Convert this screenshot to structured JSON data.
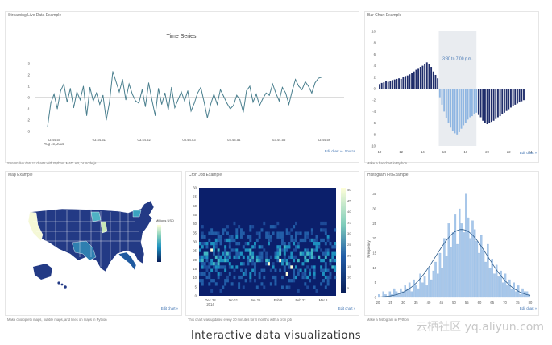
{
  "caption": "Interactive data visualizations",
  "watermark": "云栖社区 yq.aliyun.com",
  "colors": {
    "navy": "#1e2c6a",
    "light_blue": "#8fb6e2",
    "teal": "#4a7f8e",
    "accent": "#3a6fb0"
  },
  "panels": {
    "streaming": {
      "title": "Streaming Live Data Example",
      "footer": "Stream live data to charts with Python, MATLAB, or Node.js",
      "link": "Edit chart » · Source",
      "chart_data": {
        "type": "line",
        "title": "Time Series",
        "ylim": [
          -3,
          3
        ],
        "yticks": [
          "3",
          "2",
          "1",
          "0",
          "-1",
          "-2",
          "-3"
        ],
        "xticks": [
          "03:44:50\nAug 15, 2015",
          "03:44:51",
          "03:44:52",
          "03:44:53",
          "03:44:54",
          "03:44:55",
          "03:44:56"
        ],
        "values": [
          -2.6,
          -0.5,
          0.3,
          -1.0,
          0.6,
          1.2,
          -0.4,
          0.8,
          -0.9,
          0.5,
          -0.2,
          1.0,
          -1.6,
          0.9,
          -0.3,
          0.4,
          -0.6,
          0.2,
          -2.0,
          -0.4,
          2.3,
          1.4,
          0.5,
          1.6,
          -0.2,
          1.2,
          0.3,
          -0.3,
          -0.5,
          0.7,
          -0.8,
          1.3,
          -0.2,
          -1.6,
          0.8,
          -0.6,
          0.4,
          -1.1,
          0.9,
          -0.9,
          -0.2,
          0.5,
          -0.3,
          0.6,
          -1.2,
          -0.5,
          0.4,
          0.9,
          -0.4,
          -1.8,
          -0.6,
          0.3,
          -0.6,
          0.7,
          0.1,
          -0.5,
          -1.0,
          -0.7,
          0.2,
          -0.2,
          -1.3,
          0.6,
          1.0,
          -0.4,
          0.3,
          -0.7,
          -0.1,
          0.4,
          0.2,
          1.2,
          0.4,
          -0.3,
          0.9,
          0.4,
          -0.6,
          0.6,
          1.6,
          1.0,
          0.7,
          1.4,
          1.0,
          0.4,
          1.3,
          1.7,
          1.8
        ]
      }
    },
    "bar": {
      "title": "Bar Chart Example",
      "footer": "Make a bar chart in Python",
      "link": "Edit chart »",
      "annotation": "3:30 to 7:00 p.m.",
      "chart_data": {
        "type": "bar",
        "ylim": [
          -10,
          10
        ],
        "yticks": [
          "10",
          "8",
          "6",
          "4",
          "2",
          "0",
          "-2",
          "-4",
          "-6",
          "-8",
          "-10"
        ],
        "xticks": [
          "10",
          "12",
          "14",
          "16",
          "18",
          "20",
          "22",
          "24"
        ],
        "highlight_range": [
          15.5,
          19
        ],
        "x": [
          10,
          10.2,
          10.4,
          10.6,
          10.8,
          11,
          11.2,
          11.4,
          11.6,
          11.8,
          12,
          12.2,
          12.4,
          12.6,
          12.8,
          13,
          13.2,
          13.4,
          13.6,
          13.8,
          14,
          14.2,
          14.4,
          14.6,
          14.8,
          15,
          15.2,
          15.4,
          15.6,
          15.8,
          16,
          16.2,
          16.4,
          16.6,
          16.8,
          17,
          17.2,
          17.4,
          17.6,
          17.8,
          18,
          18.2,
          18.4,
          18.6,
          18.8,
          19,
          19.2,
          19.4,
          19.6,
          19.8,
          20,
          20.2,
          20.4,
          20.6,
          20.8,
          21,
          21.2,
          21.4,
          21.6,
          21.8,
          22,
          22.2,
          22.4,
          22.6,
          22.8,
          23,
          23.2,
          23.4
        ],
        "values": [
          0.8,
          1.0,
          1.1,
          1.3,
          1.2,
          1.4,
          1.5,
          1.6,
          1.7,
          1.8,
          1.7,
          2.0,
          2.2,
          2.3,
          2.5,
          2.8,
          3.0,
          3.3,
          3.6,
          3.8,
          4.0,
          4.3,
          4.6,
          4.3,
          3.8,
          3.0,
          2.4,
          1.8,
          -1.5,
          -2.8,
          -4.0,
          -5.2,
          -6.0,
          -6.8,
          -7.4,
          -7.8,
          -8.0,
          -7.6,
          -7.0,
          -6.4,
          -6.0,
          -5.4,
          -5.0,
          -4.8,
          -4.5,
          -4.2,
          -4.6,
          -5.0,
          -5.6,
          -6.0,
          -6.2,
          -6.0,
          -5.8,
          -5.6,
          -5.3,
          -5.0,
          -4.8,
          -4.5,
          -4.2,
          -3.9,
          -3.6,
          -3.3,
          -3.0,
          -2.8,
          -2.6,
          -2.4,
          -2.2,
          -2.0
        ]
      }
    },
    "map": {
      "title": "Map Example",
      "legend_title": "Millions USD",
      "footer": "Make choropleth maps, bubble maps, and lines on maps in Python",
      "link": "Edit chart »"
    },
    "heatmap": {
      "title": "Cron Job Example",
      "footer": "This chart was updated every 30 minutes for 4 months with a cron job",
      "link": "Edit chart »",
      "chart_data": {
        "type": "heatmap",
        "yticks": [
          "60",
          "55",
          "50",
          "45",
          "40",
          "35",
          "30",
          "25",
          "20",
          "15",
          "10",
          "5",
          "0"
        ],
        "xticks": [
          "Dec 28\n2014",
          "Jan 11",
          "Jan 25",
          "Feb 8",
          "Feb 22",
          "Mar 8"
        ],
        "colorbar_ticks": [
          "50",
          "45",
          "40",
          "35",
          "30",
          "25",
          "20",
          "15",
          "10",
          "5"
        ]
      }
    },
    "hist": {
      "title": "Histogram Fit Example",
      "ylabel": "Frequency",
      "footer": "Make a histogram in Python",
      "link": "Edit chart »",
      "chart_data": {
        "type": "bar",
        "ylabel": "Frequency",
        "ylim": [
          0,
          36
        ],
        "yticks": [
          "35",
          "30",
          "25",
          "20",
          "15",
          "10",
          "5",
          "0"
        ],
        "xticks": [
          "20",
          "25",
          "30",
          "35",
          "40",
          "45",
          "50",
          "55",
          "60",
          "65",
          "70",
          "75",
          "80"
        ],
        "values": [
          1,
          0,
          2,
          1,
          0,
          2,
          1,
          3,
          2,
          1,
          3,
          2,
          4,
          3,
          5,
          2,
          6,
          4,
          3,
          8,
          5,
          7,
          4,
          10,
          6,
          9,
          12,
          8,
          15,
          10,
          20,
          14,
          25,
          17,
          22,
          28,
          18,
          30,
          25,
          22,
          35,
          27,
          20,
          26,
          23,
          19,
          15,
          21,
          16,
          12,
          18,
          10,
          13,
          8,
          11,
          7,
          9,
          5,
          8,
          4,
          6,
          3,
          5,
          2,
          4,
          1,
          3,
          2,
          2,
          1
        ]
      }
    }
  }
}
